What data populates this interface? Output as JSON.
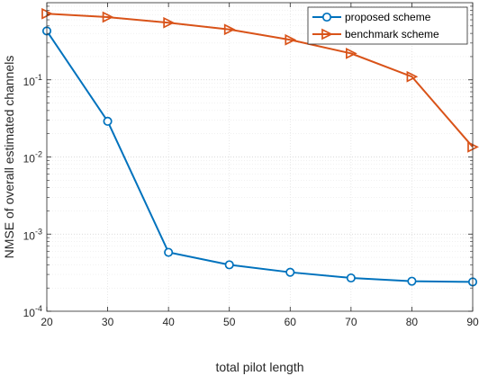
{
  "chart_data": {
    "type": "line",
    "xlabel": "total pilot length",
    "ylabel": "NMSE of overall estimated channels",
    "xlim": [
      20,
      90
    ],
    "ylim": [
      0.0001,
      1
    ],
    "yscale": "log",
    "grid": true,
    "legend_position": "top-right",
    "x_ticks": [
      "20",
      "30",
      "40",
      "50",
      "60",
      "70",
      "80",
      "90"
    ],
    "y_ticks": [
      {
        "base": "10",
        "exp": "-4"
      },
      {
        "base": "10",
        "exp": "-3"
      },
      {
        "base": "10",
        "exp": "-2"
      },
      {
        "base": "10",
        "exp": "-1"
      }
    ],
    "x": [
      20,
      30,
      40,
      50,
      60,
      70,
      80,
      90
    ],
    "series": [
      {
        "name": "proposed scheme",
        "color": "#0072bd",
        "marker": "circle",
        "values": [
          0.43,
          0.029,
          0.00058,
          0.0004,
          0.00032,
          0.00027,
          0.000245,
          0.00024
        ]
      },
      {
        "name": "benchmark scheme",
        "color": "#d95319",
        "marker": "triangle-right",
        "values": [
          0.72,
          0.65,
          0.55,
          0.45,
          0.33,
          0.22,
          0.11,
          0.0135
        ]
      }
    ]
  }
}
